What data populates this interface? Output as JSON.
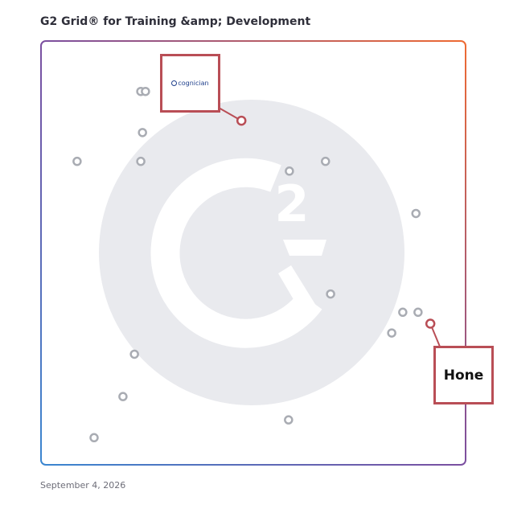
{
  "header": {
    "title": "G2 Grid® for Training &amp; Development"
  },
  "footer": {
    "date": "September 4, 2026"
  },
  "colors": {
    "frame_start": "#3a86d0",
    "frame_mid": "#7b4fa0",
    "frame_end": "#ee6a32",
    "dot": "#a9acb3",
    "highlight": "#b94e56",
    "watermark": "#e9eaee"
  },
  "chart_data": {
    "type": "scatter",
    "title": "G2 Grid® for Training &amp; Development",
    "xlabel": "",
    "ylabel": "",
    "xlim": [
      0,
      100
    ],
    "ylim": [
      0,
      100
    ],
    "grid": false,
    "quadrant_dividers": {
      "x": 50,
      "y": 50
    },
    "points": [
      {
        "x": 23.5,
        "y": 88.1
      },
      {
        "x": 24.6,
        "y": 88.1
      },
      {
        "x": 23.9,
        "y": 78.4
      },
      {
        "x": 8.5,
        "y": 71.6
      },
      {
        "x": 23.5,
        "y": 71.6
      },
      {
        "x": 58.5,
        "y": 69.3
      },
      {
        "x": 67.0,
        "y": 71.6
      },
      {
        "x": 88.3,
        "y": 59.3
      },
      {
        "x": 68.2,
        "y": 40.3
      },
      {
        "x": 85.2,
        "y": 36.0
      },
      {
        "x": 88.8,
        "y": 36.0
      },
      {
        "x": 82.6,
        "y": 31.1
      },
      {
        "x": 22.0,
        "y": 26.1
      },
      {
        "x": 19.3,
        "y": 16.1
      },
      {
        "x": 12.5,
        "y": 6.4
      },
      {
        "x": 58.3,
        "y": 10.6
      }
    ],
    "highlighted": [
      {
        "label": "cognician",
        "x": 47.2,
        "y": 81.2
      },
      {
        "label": "Hone",
        "x": 91.7,
        "y": 33.3
      }
    ]
  }
}
